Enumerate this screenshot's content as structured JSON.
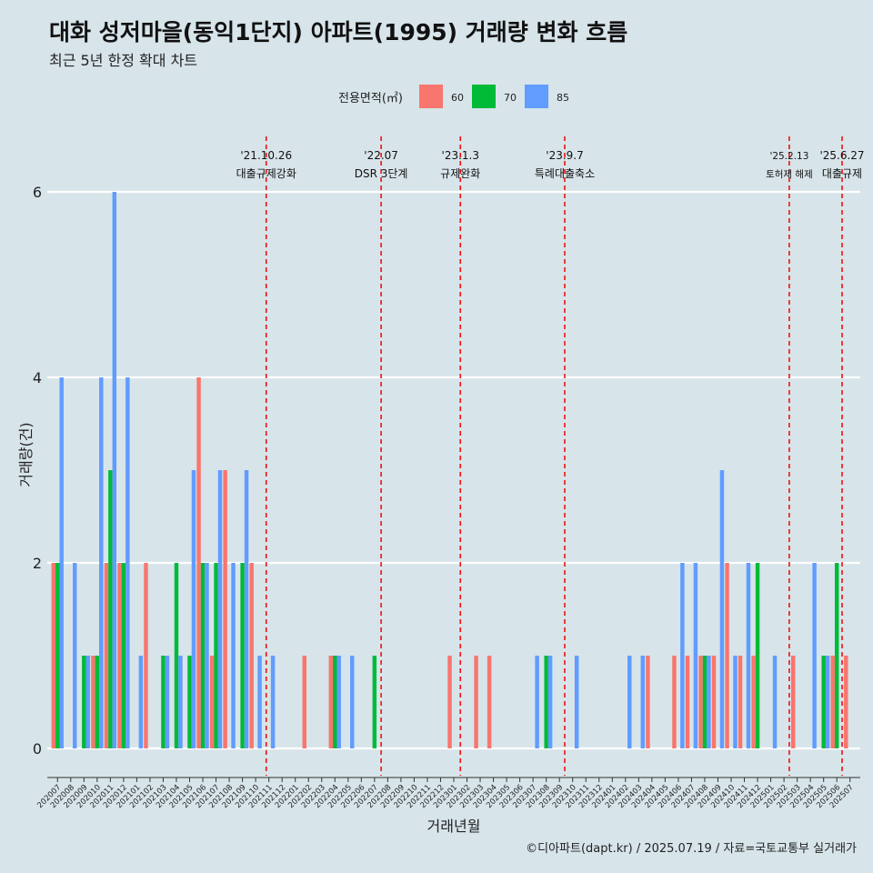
{
  "title": "대화 성저마을(동익1단지) 아파트(1995) 거래량 변화 흐름",
  "subtitle": "최근 5년 한정 확대 차트",
  "caption": "©디아파트(dapt.kr) / 2025.07.19 / 자료=국토교통부 실거래가",
  "chart_data": {
    "type": "bar",
    "xlabel": "거래년월",
    "ylabel": "거래량(건)",
    "ylim": [
      0,
      6
    ],
    "yticks": [
      0,
      2,
      4,
      6
    ],
    "legend": {
      "title": "전용면적(㎡)",
      "placement": "top",
      "entries": [
        {
          "name": "60",
          "color": "#f8766d"
        },
        {
          "name": "70",
          "color": "#00ba38"
        },
        {
          "name": "85",
          "color": "#619cff"
        }
      ]
    },
    "categories": [
      "202007",
      "202008",
      "202009",
      "202010",
      "202011",
      "202012",
      "202101",
      "202102",
      "202103",
      "202104",
      "202105",
      "202106",
      "202107",
      "202108",
      "202109",
      "202110",
      "202111",
      "202112",
      "202201",
      "202202",
      "202203",
      "202204",
      "202205",
      "202206",
      "202207",
      "202208",
      "202209",
      "202210",
      "202211",
      "202212",
      "202301",
      "202302",
      "202303",
      "202304",
      "202305",
      "202306",
      "202307",
      "202308",
      "202309",
      "202310",
      "202311",
      "202312",
      "202401",
      "202402",
      "202403",
      "202404",
      "202405",
      "202406",
      "202407",
      "202408",
      "202409",
      "202410",
      "202411",
      "202412",
      "202501",
      "202502",
      "202503",
      "202504",
      "202505",
      "202506",
      "202507"
    ],
    "series": [
      {
        "name": "60",
        "color": "#f8766d",
        "values": [
          2,
          0,
          0,
          1,
          2,
          2,
          0,
          2,
          0,
          0,
          0,
          4,
          1,
          3,
          0,
          2,
          0,
          0,
          0,
          1,
          0,
          1,
          0,
          0,
          0,
          0,
          0,
          0,
          0,
          0,
          1,
          0,
          1,
          1,
          0,
          0,
          0,
          0,
          0,
          0,
          0,
          0,
          0,
          0,
          0,
          1,
          0,
          1,
          1,
          1,
          1,
          2,
          1,
          1,
          0,
          0,
          1,
          0,
          0,
          1,
          1
        ]
      },
      {
        "name": "70",
        "color": "#00ba38",
        "values": [
          2,
          0,
          1,
          1,
          3,
          2,
          0,
          0,
          1,
          2,
          1,
          2,
          2,
          0,
          2,
          0,
          0,
          0,
          0,
          0,
          0,
          1,
          0,
          0,
          1,
          0,
          0,
          0,
          0,
          0,
          0,
          0,
          0,
          0,
          0,
          0,
          0,
          1,
          0,
          0,
          0,
          0,
          0,
          0,
          0,
          0,
          0,
          0,
          0,
          1,
          0,
          0,
          0,
          2,
          0,
          0,
          0,
          0,
          1,
          2,
          0
        ]
      },
      {
        "name": "85",
        "color": "#619cff",
        "values": [
          4,
          2,
          1,
          4,
          6,
          4,
          1,
          0,
          1,
          1,
          3,
          2,
          3,
          2,
          3,
          1,
          1,
          0,
          0,
          0,
          0,
          1,
          1,
          0,
          0,
          0,
          0,
          0,
          0,
          0,
          0,
          0,
          0,
          0,
          0,
          0,
          1,
          1,
          0,
          1,
          0,
          0,
          0,
          1,
          1,
          0,
          0,
          2,
          2,
          1,
          3,
          1,
          2,
          0,
          1,
          0,
          0,
          2,
          1,
          0,
          0
        ]
      }
    ],
    "annotations": [
      {
        "date": "'21.10.26",
        "text": "대출규제강화",
        "category_index": 15.8,
        "small": false
      },
      {
        "date": "'22.07",
        "text": "DSR 3단계",
        "category_index": 24.5,
        "small": false
      },
      {
        "date": "'23.1.3",
        "text": "규제완화",
        "category_index": 30.5,
        "small": false
      },
      {
        "date": "'23.9.7",
        "text": "특례대출축소",
        "category_index": 38.4,
        "small": false
      },
      {
        "date": "'25.2.13",
        "text": "토허제 해제",
        "category_index": 55.4,
        "small": true
      },
      {
        "date": "'25.6.27",
        "text": "대출규제",
        "category_index": 59.4,
        "small": false
      }
    ]
  }
}
